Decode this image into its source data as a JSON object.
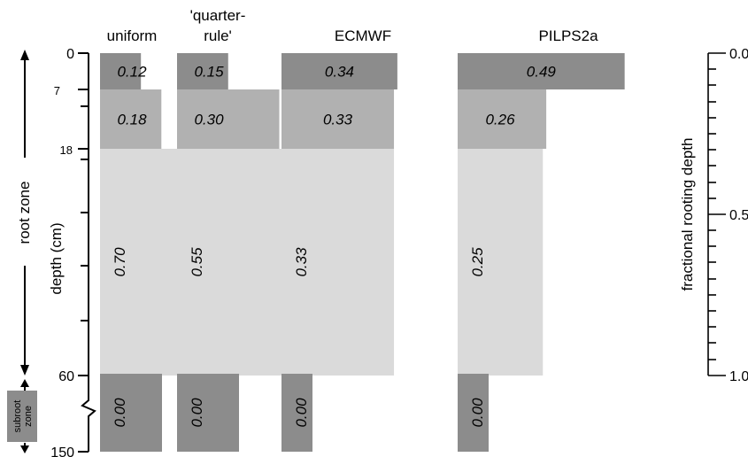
{
  "chart_data": {
    "type": "bar",
    "ylabel_left": "depth (cm)",
    "ylabel_right": "fractional rooting depth",
    "zone_labels": {
      "root": "root zone",
      "subroot": "subroot zone"
    },
    "depth_ticks": [
      "0",
      "7",
      "18",
      "60",
      "150"
    ],
    "fraction_ticks": [
      "0.0",
      "0.5",
      "1.0"
    ],
    "layers": [
      "0-7",
      "7-18",
      "18-60",
      "60-150"
    ],
    "series": [
      {
        "name": "uniform",
        "values": [
          0.12,
          0.18,
          0.7,
          0.0
        ]
      },
      {
        "name": "'quarter-rule'",
        "values": [
          0.15,
          0.3,
          0.55,
          0.0
        ]
      },
      {
        "name": "ECMWF",
        "values": [
          0.34,
          0.33,
          0.33,
          0.0
        ]
      },
      {
        "name": "PILPS2a",
        "values": [
          0.49,
          0.26,
          0.25,
          0.0
        ]
      }
    ],
    "value_labels": [
      [
        "0.12",
        "0.18",
        "0.70",
        "0.00"
      ],
      [
        "0.15",
        "0.30",
        "0.55",
        "0.00"
      ],
      [
        "0.34",
        "0.33",
        "0.33",
        "0.00"
      ],
      [
        "0.49",
        "0.26",
        "0.25",
        "0.00"
      ]
    ],
    "layer_colors": [
      "#8c8c8c",
      "#b1b1b1",
      "#dadada",
      "#8c8c8c"
    ]
  }
}
